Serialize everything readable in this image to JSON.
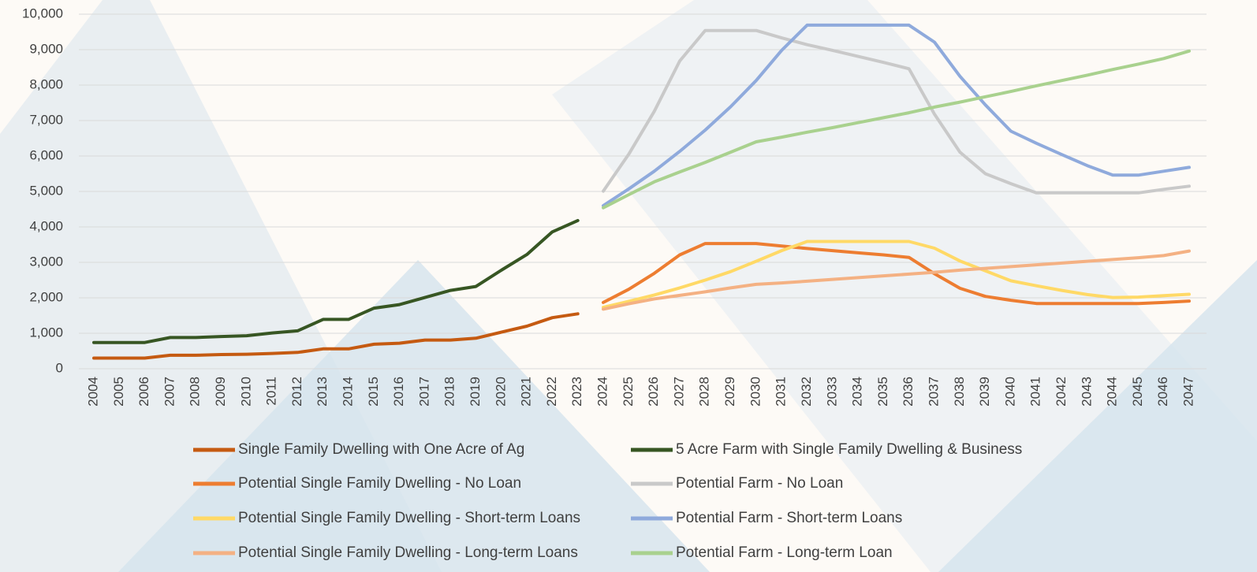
{
  "chart_data": {
    "type": "line",
    "categories": [
      "2004",
      "2005",
      "2006",
      "2007",
      "2008",
      "2009",
      "2010",
      "2011",
      "2012",
      "2013",
      "2014",
      "2015",
      "2016",
      "2017",
      "2018",
      "2019",
      "2020",
      "2021",
      "2022",
      "2023",
      "2024",
      "2025",
      "2026",
      "2027",
      "2028",
      "2029",
      "2030",
      "2031",
      "2032",
      "2033",
      "2034",
      "2035",
      "2036",
      "2037",
      "2038",
      "2039",
      "2040",
      "2041",
      "2042",
      "2043",
      "2044",
      "2045",
      "2046",
      "2047"
    ],
    "series": [
      {
        "name": "Single Family Dwelling with One Acre of Ag",
        "color": "#c55a11",
        "values": [
          300,
          300,
          300,
          380,
          380,
          400,
          410,
          430,
          460,
          560,
          560,
          690,
          720,
          810,
          810,
          860,
          1030,
          1200,
          1440,
          1550,
          null,
          null,
          null,
          null,
          null,
          null,
          null,
          null,
          null,
          null,
          null,
          null,
          null,
          null,
          null,
          null,
          null,
          null,
          null,
          null,
          null,
          null,
          null,
          null
        ]
      },
      {
        "name": "5 Acre Farm with Single Family Dwelling & Business",
        "color": "#375623",
        "values": [
          740,
          740,
          740,
          880,
          880,
          910,
          930,
          1010,
          1070,
          1390,
          1390,
          1710,
          1810,
          2010,
          2210,
          2320,
          2780,
          3220,
          3860,
          4180,
          null,
          null,
          null,
          null,
          null,
          null,
          null,
          null,
          null,
          null,
          null,
          null,
          null,
          null,
          null,
          null,
          null,
          null,
          null,
          null,
          null,
          null,
          null,
          null
        ]
      },
      {
        "name": "Potential Single Family Dwelling - No Loan",
        "color": "#ed7d31",
        "values": [
          null,
          null,
          null,
          null,
          null,
          null,
          null,
          null,
          null,
          null,
          null,
          null,
          null,
          null,
          null,
          null,
          null,
          null,
          null,
          null,
          1870,
          2240,
          2690,
          3210,
          3530,
          3530,
          3530,
          3460,
          3390,
          3330,
          3270,
          3210,
          3140,
          2680,
          2270,
          2040,
          1930,
          1840,
          1840,
          1840,
          1840,
          1840,
          1870,
          1910
        ]
      },
      {
        "name": "Potential Farm - No Loan",
        "color": "#c9c9c9",
        "values": [
          null,
          null,
          null,
          null,
          null,
          null,
          null,
          null,
          null,
          null,
          null,
          null,
          null,
          null,
          null,
          null,
          null,
          null,
          null,
          null,
          5010,
          6050,
          7260,
          8680,
          9540,
          9540,
          9540,
          9330,
          9140,
          8980,
          8810,
          8640,
          8460,
          7180,
          6110,
          5500,
          5220,
          4960,
          4960,
          4960,
          4960,
          4960,
          5060,
          5150
        ]
      },
      {
        "name": "Potential Single Family Dwelling - Short-term Loans",
        "color": "#ffd966",
        "values": [
          null,
          null,
          null,
          null,
          null,
          null,
          null,
          null,
          null,
          null,
          null,
          null,
          null,
          null,
          null,
          null,
          null,
          null,
          null,
          null,
          1730,
          1900,
          2080,
          2280,
          2500,
          2740,
          3030,
          3330,
          3590,
          3590,
          3590,
          3590,
          3590,
          3400,
          3040,
          2760,
          2480,
          2340,
          2210,
          2090,
          2010,
          2020,
          2060,
          2100
        ]
      },
      {
        "name": "Potential Farm - Short-term Loans",
        "color": "#8faadc",
        "values": [
          null,
          null,
          null,
          null,
          null,
          null,
          null,
          null,
          null,
          null,
          null,
          null,
          null,
          null,
          null,
          null,
          null,
          null,
          null,
          null,
          4600,
          5070,
          5570,
          6130,
          6730,
          7390,
          8130,
          8980,
          9690,
          9690,
          9690,
          9690,
          9690,
          9210,
          8250,
          7440,
          6700,
          6360,
          6040,
          5730,
          5460,
          5460,
          5570,
          5680
        ]
      },
      {
        "name": "Potential Single Family Dwelling - Long-term Loans",
        "color": "#f4b183",
        "values": [
          null,
          null,
          null,
          null,
          null,
          null,
          null,
          null,
          null,
          null,
          null,
          null,
          null,
          null,
          null,
          null,
          null,
          null,
          null,
          null,
          1680,
          1830,
          1970,
          2070,
          2170,
          2280,
          2380,
          2420,
          2470,
          2520,
          2570,
          2620,
          2670,
          2720,
          2780,
          2830,
          2880,
          2930,
          2980,
          3030,
          3080,
          3130,
          3190,
          3320
        ]
      },
      {
        "name": "Potential Farm - Long-term Loan",
        "color": "#a9d18e",
        "values": [
          null,
          null,
          null,
          null,
          null,
          null,
          null,
          null,
          null,
          null,
          null,
          null,
          null,
          null,
          null,
          null,
          null,
          null,
          null,
          null,
          4540,
          4910,
          5270,
          5550,
          5820,
          6110,
          6400,
          6530,
          6670,
          6800,
          6940,
          7080,
          7220,
          7380,
          7520,
          7670,
          7820,
          7980,
          8130,
          8280,
          8440,
          8590,
          8750,
          8960
        ]
      }
    ],
    "ylim": [
      0,
      10000
    ],
    "yticks": [
      0,
      {
        "value": 1000,
        "label": "1,000"
      },
      {
        "value": 2000,
        "label": "2,000"
      },
      {
        "value": 3000,
        "label": "3,000"
      },
      {
        "value": 4000,
        "label": "4,000"
      },
      {
        "value": 5000,
        "label": "5,000"
      },
      {
        "value": 6000,
        "label": "6,000"
      },
      {
        "value": 7000,
        "label": "7,000"
      },
      {
        "value": 8000,
        "label": "8,000"
      },
      {
        "value": 9000,
        "label": "9,000"
      },
      {
        "value": 10000,
        "label": "10,000"
      }
    ],
    "grid": true
  }
}
